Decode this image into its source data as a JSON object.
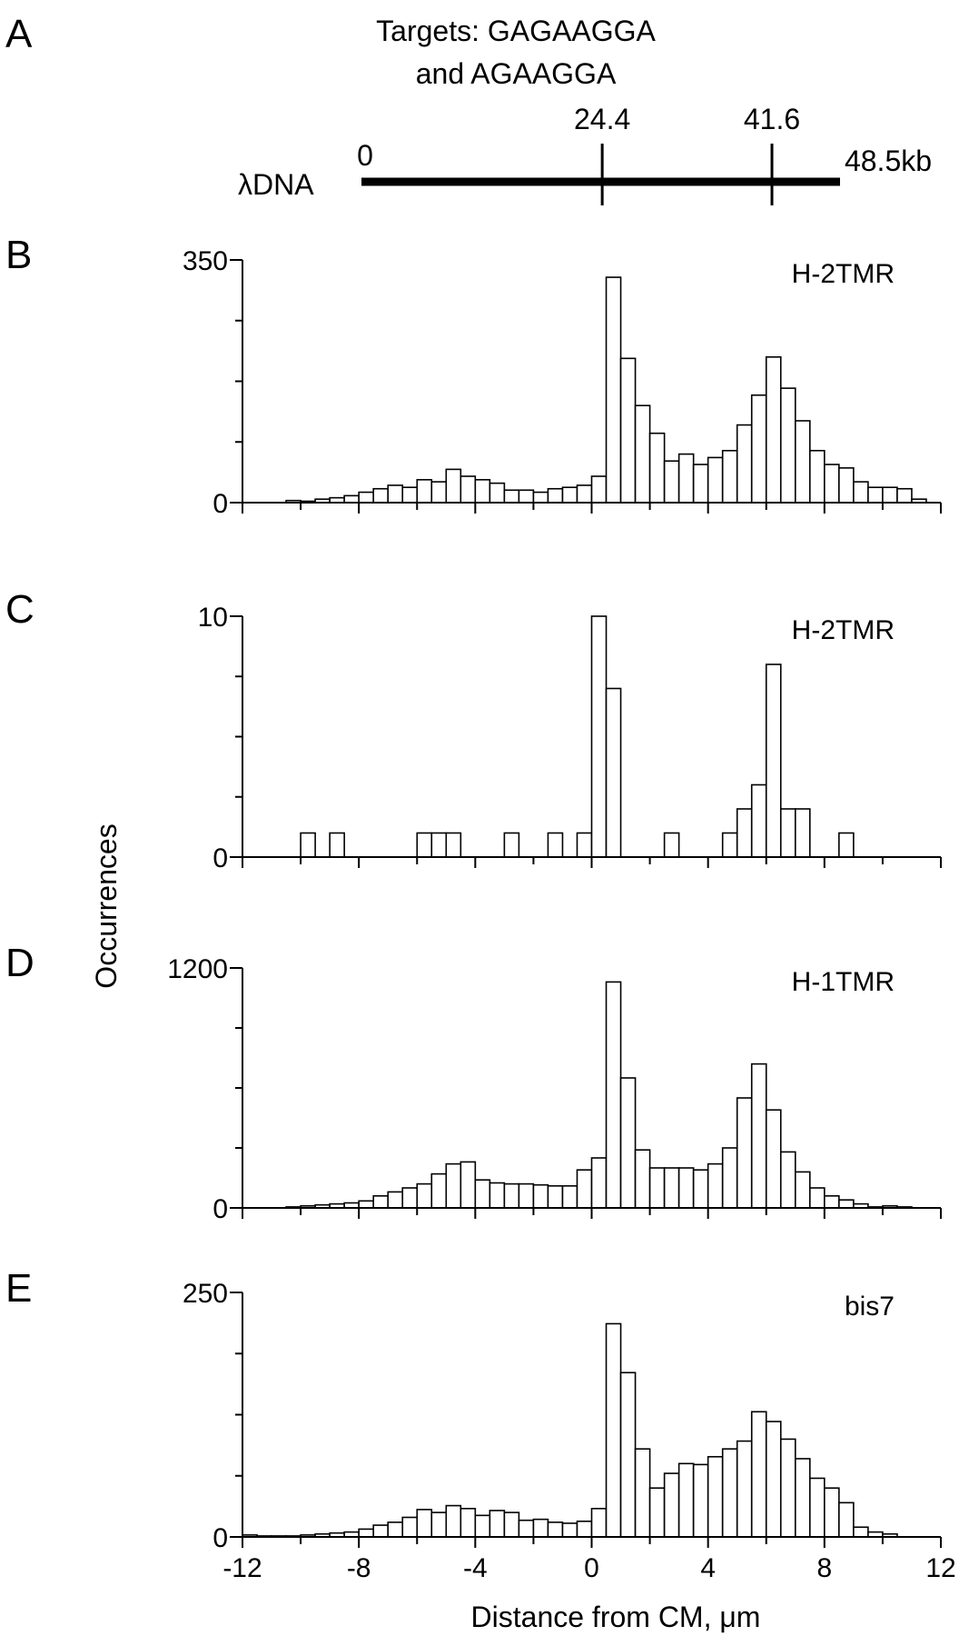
{
  "panel_a": {
    "letter": "A",
    "targets_line1": "Targets: GAGAAGGA",
    "targets_line2": "and AGAAGGA",
    "dna_label": "λDNA",
    "start_label": "0",
    "end_label": "48.5kb",
    "length_kb": 48.5,
    "markers": [
      {
        "label": "24.4",
        "kb": 24.4
      },
      {
        "label": "41.6",
        "kb": 41.6
      }
    ]
  },
  "shared_axis": {
    "ylabel": "Occurrences",
    "xlabel": "Distance from CM, μm",
    "xlim": [
      -12,
      12
    ],
    "x_tick_labels": [
      "-12",
      "-8",
      "-4",
      "0",
      "4",
      "8",
      "12"
    ],
    "x_tick_values": [
      -12,
      -8,
      -4,
      0,
      4,
      8,
      12
    ],
    "bin_width": 0.5
  },
  "chart_data": [
    {
      "type": "bar",
      "panel": "B",
      "letter": "B",
      "series_label": "H-2TMR",
      "ylim": [
        0,
        350
      ],
      "ytick_labels": [
        "0",
        "350"
      ],
      "bin_left_edges": [
        -10.5,
        -10,
        -9.5,
        -9,
        -8.5,
        -8,
        -7.5,
        -7,
        -6.5,
        -6,
        -5.5,
        -5,
        -4.5,
        -4,
        -3.5,
        -3,
        -2.5,
        -2,
        -1.5,
        -1,
        -0.5,
        0,
        0.5,
        1,
        1.5,
        2,
        2.5,
        3,
        3.5,
        4,
        4.5,
        5,
        5.5,
        6,
        6.5,
        7,
        7.5,
        8,
        8.5,
        9,
        9.5,
        10,
        10.5,
        11
      ],
      "values": [
        3,
        2,
        5,
        7,
        10,
        15,
        20,
        25,
        22,
        33,
        30,
        48,
        38,
        33,
        28,
        18,
        18,
        15,
        20,
        22,
        25,
        38,
        325,
        208,
        140,
        100,
        60,
        70,
        55,
        65,
        75,
        112,
        155,
        210,
        165,
        118,
        75,
        55,
        50,
        30,
        22,
        22,
        20,
        5
      ]
    },
    {
      "type": "bar",
      "panel": "C",
      "letter": "C",
      "series_label": "H-2TMR",
      "ylim": [
        0,
        10
      ],
      "ytick_labels": [
        "0",
        "10"
      ],
      "bin_left_edges": [
        -10,
        -9,
        -6,
        -5.5,
        -5,
        -3,
        -1.5,
        -0.5,
        0,
        0.5,
        2.5,
        4.5,
        5,
        5.5,
        6,
        6.5,
        7,
        8.5
      ],
      "values": [
        1,
        1,
        1,
        1,
        1,
        1,
        1,
        1,
        10,
        7,
        1,
        1,
        2,
        3,
        8,
        2,
        2,
        1
      ]
    },
    {
      "type": "bar",
      "panel": "D",
      "letter": "D",
      "series_label": "H-1TMR",
      "ylim": [
        0,
        1200
      ],
      "ytick_labels": [
        "0",
        "1200"
      ],
      "bin_left_edges": [
        -10.5,
        -10,
        -9.5,
        -9,
        -8.5,
        -8,
        -7.5,
        -7,
        -6.5,
        -6,
        -5.5,
        -5,
        -4.5,
        -4,
        -3.5,
        -3,
        -2.5,
        -2,
        -1.5,
        -1,
        -0.5,
        0,
        0.5,
        1,
        1.5,
        2,
        2.5,
        3,
        3.5,
        4,
        4.5,
        5,
        5.5,
        6,
        6.5,
        7,
        7.5,
        8,
        8.5,
        9,
        9.5,
        10,
        10.5,
        11
      ],
      "values": [
        5,
        10,
        15,
        20,
        25,
        35,
        60,
        80,
        100,
        120,
        170,
        220,
        230,
        140,
        125,
        120,
        120,
        115,
        110,
        110,
        190,
        250,
        1130,
        650,
        290,
        200,
        200,
        200,
        190,
        220,
        300,
        550,
        720,
        490,
        280,
        180,
        100,
        60,
        40,
        20,
        5,
        10,
        5,
        0
      ]
    },
    {
      "type": "bar",
      "panel": "E",
      "letter": "E",
      "series_label": "bis7",
      "ylim": [
        0,
        250
      ],
      "ytick_labels": [
        "0",
        "250"
      ],
      "bin_left_edges": [
        -12,
        -11.5,
        -11,
        -10.5,
        -10,
        -9.5,
        -9,
        -8.5,
        -8,
        -7.5,
        -7,
        -6.5,
        -6,
        -5.5,
        -5,
        -4.5,
        -4,
        -3.5,
        -3,
        -2.5,
        -2,
        -1.5,
        -1,
        -0.5,
        0,
        0.5,
        1,
        1.5,
        2,
        2.5,
        3,
        3.5,
        4,
        4.5,
        5,
        5.5,
        6,
        6.5,
        7,
        7.5,
        8,
        8.5,
        9,
        9.5,
        10,
        10.5
      ],
      "values": [
        2,
        1,
        1,
        1,
        2,
        3,
        4,
        5,
        8,
        12,
        15,
        20,
        28,
        25,
        32,
        29,
        22,
        27,
        25,
        17,
        18,
        15,
        14,
        16,
        29,
        218,
        168,
        90,
        50,
        65,
        75,
        74,
        82,
        90,
        98,
        128,
        118,
        100,
        80,
        60,
        50,
        35,
        10,
        5,
        3,
        0
      ]
    }
  ]
}
